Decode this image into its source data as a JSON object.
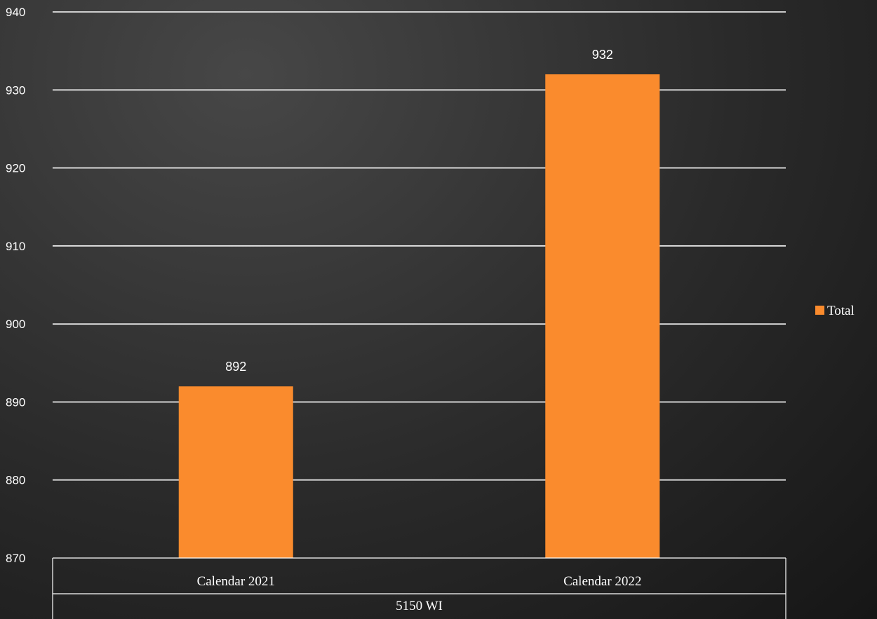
{
  "chart_data": {
    "type": "bar",
    "categories": [
      "Calendar 2021",
      "Calendar 2022"
    ],
    "group_label": "5150 WI",
    "series": [
      {
        "name": "Total",
        "values": [
          892,
          932
        ],
        "color": "#fa8b2d"
      }
    ],
    "ylim": [
      870,
      940
    ],
    "yticks": [
      870,
      880,
      890,
      900,
      910,
      920,
      930,
      940
    ],
    "grid": true,
    "legend": "right",
    "data_labels": [
      "892",
      "932"
    ]
  }
}
